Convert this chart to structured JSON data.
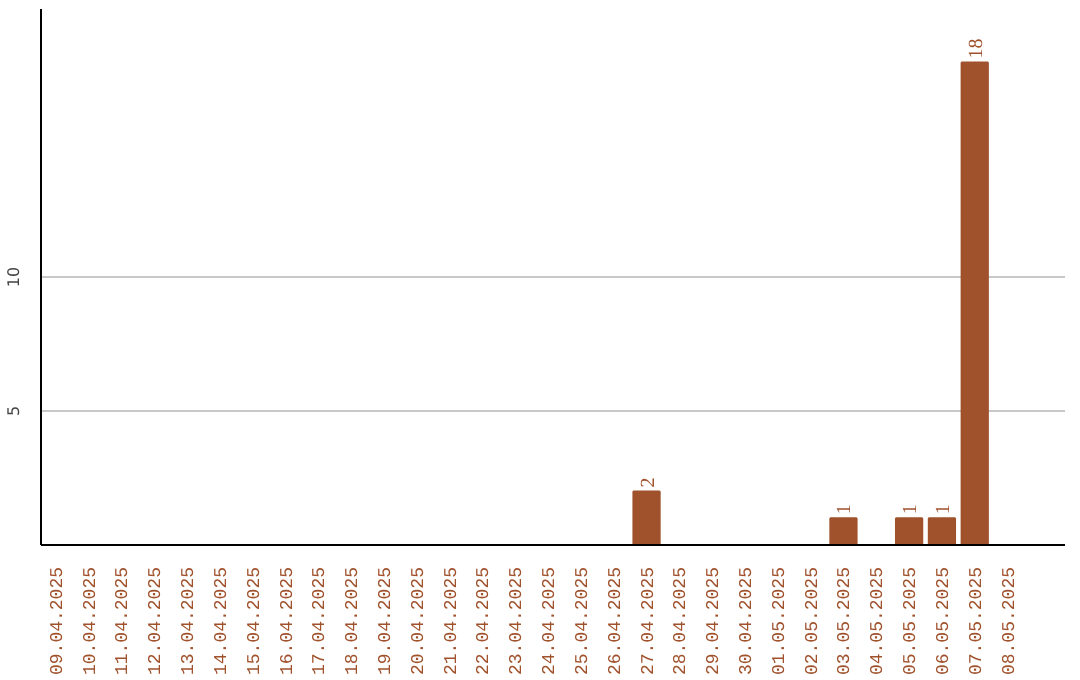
{
  "chart_data": {
    "type": "bar",
    "categories": [
      "09.04.2025",
      "10.04.2025",
      "11.04.2025",
      "12.04.2025",
      "13.04.2025",
      "14.04.2025",
      "15.04.2025",
      "16.04.2025",
      "17.04.2025",
      "18.04.2025",
      "19.04.2025",
      "20.04.2025",
      "21.04.2025",
      "22.04.2025",
      "23.04.2025",
      "24.04.2025",
      "25.04.2025",
      "26.04.2025",
      "27.04.2025",
      "28.04.2025",
      "29.04.2025",
      "30.04.2025",
      "01.05.2025",
      "02.05.2025",
      "03.05.2025",
      "04.05.2025",
      "05.05.2025",
      "06.05.2025",
      "07.05.2025",
      "08.05.2025"
    ],
    "values": [
      0,
      0,
      0,
      0,
      0,
      0,
      0,
      0,
      0,
      0,
      0,
      0,
      0,
      0,
      0,
      0,
      0,
      0,
      2,
      0,
      0,
      0,
      0,
      0,
      1,
      0,
      1,
      1,
      18,
      0
    ],
    "value_labels": [
      null,
      null,
      null,
      null,
      null,
      null,
      null,
      null,
      null,
      null,
      null,
      null,
      null,
      null,
      null,
      null,
      null,
      null,
      "2",
      null,
      null,
      null,
      null,
      null,
      "1",
      null,
      "1",
      "1",
      "18",
      null
    ],
    "color": "#a0522d",
    "ylim": [
      0,
      20
    ],
    "yticks": [
      5,
      10
    ],
    "grid": "y"
  }
}
